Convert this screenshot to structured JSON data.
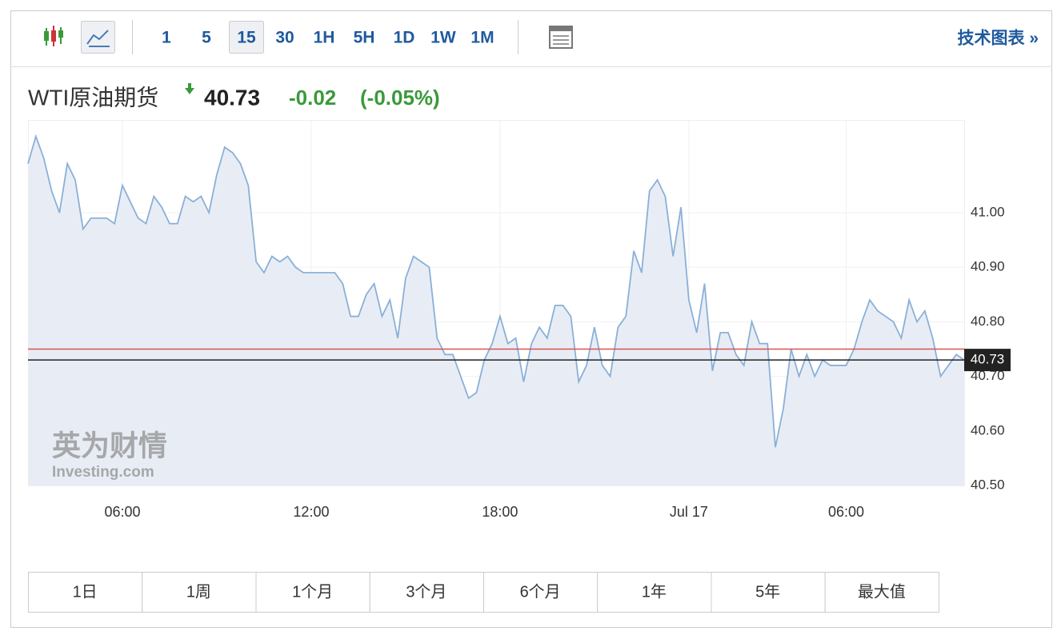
{
  "toolbar": {
    "intervals": [
      "1",
      "5",
      "15",
      "30",
      "1H",
      "5H",
      "1D",
      "1W",
      "1M"
    ],
    "selected_interval": "15",
    "link": "技术图表 »"
  },
  "header": {
    "name": "WTI原油期货",
    "price": 40.73,
    "change": -0.02,
    "change_pct": "(-0.05%)"
  },
  "watermark": {
    "cn": "英为财情",
    "en": "Investing.com"
  },
  "chart_data": {
    "type": "area",
    "color": "#8ab0d8",
    "fill": "#e8edf5",
    "values": [
      41.09,
      41.14,
      41.1,
      41.04,
      41.0,
      41.09,
      41.06,
      40.97,
      40.99,
      40.99,
      40.99,
      40.98,
      41.05,
      41.02,
      40.99,
      40.98,
      41.03,
      41.01,
      40.98,
      40.98,
      41.03,
      41.02,
      41.03,
      41.0,
      41.07,
      41.12,
      41.11,
      41.09,
      41.05,
      40.91,
      40.89,
      40.92,
      40.91,
      40.92,
      40.9,
      40.89,
      40.89,
      40.89,
      40.89,
      40.89,
      40.87,
      40.81,
      40.81,
      40.85,
      40.87,
      40.81,
      40.84,
      40.77,
      40.88,
      40.92,
      40.91,
      40.9,
      40.77,
      40.74,
      40.74,
      40.7,
      40.66,
      40.67,
      40.73,
      40.76,
      40.81,
      40.76,
      40.77,
      40.69,
      40.76,
      40.79,
      40.77,
      40.83,
      40.83,
      40.81,
      40.69,
      40.72,
      40.79,
      40.72,
      40.7,
      40.79,
      40.81,
      40.93,
      40.89,
      41.04,
      41.06,
      41.03,
      40.92,
      41.01,
      40.84,
      40.78,
      40.87,
      40.71,
      40.78,
      40.78,
      40.74,
      40.72,
      40.8,
      40.76,
      40.76,
      40.57,
      40.64,
      40.75,
      40.7,
      40.74,
      40.7,
      40.73,
      40.72,
      40.72,
      40.72,
      40.75,
      40.8,
      40.84,
      40.82,
      40.81,
      40.8,
      40.77,
      40.84,
      40.8,
      40.82,
      40.77,
      40.7,
      40.72,
      40.74,
      40.73
    ],
    "xlim": [
      0,
      119
    ],
    "xticks": [
      {
        "value": 12,
        "label": "06:00"
      },
      {
        "value": 36,
        "label": "12:00"
      },
      {
        "value": 60,
        "label": "18:00"
      },
      {
        "value": 84,
        "label": "Jul 17"
      },
      {
        "value": 104,
        "label": "06:00"
      }
    ],
    "ylim": [
      40.5,
      41.17
    ],
    "yticks": [
      {
        "value": 40.5,
        "label": "40.50"
      },
      {
        "value": 40.6,
        "label": "40.60"
      },
      {
        "value": 40.7,
        "label": "40.70"
      },
      {
        "value": 40.8,
        "label": "40.80"
      },
      {
        "value": 40.9,
        "label": "40.90"
      },
      {
        "value": 41.0,
        "label": "41.00"
      }
    ],
    "reference_line": {
      "value": 40.75,
      "color": "#d9534f"
    },
    "price_line_color": "#222222",
    "grid": true
  },
  "ranges": [
    "1日",
    "1周",
    "1个月",
    "3个月",
    "6个月",
    "1年",
    "5年",
    "最大值"
  ]
}
